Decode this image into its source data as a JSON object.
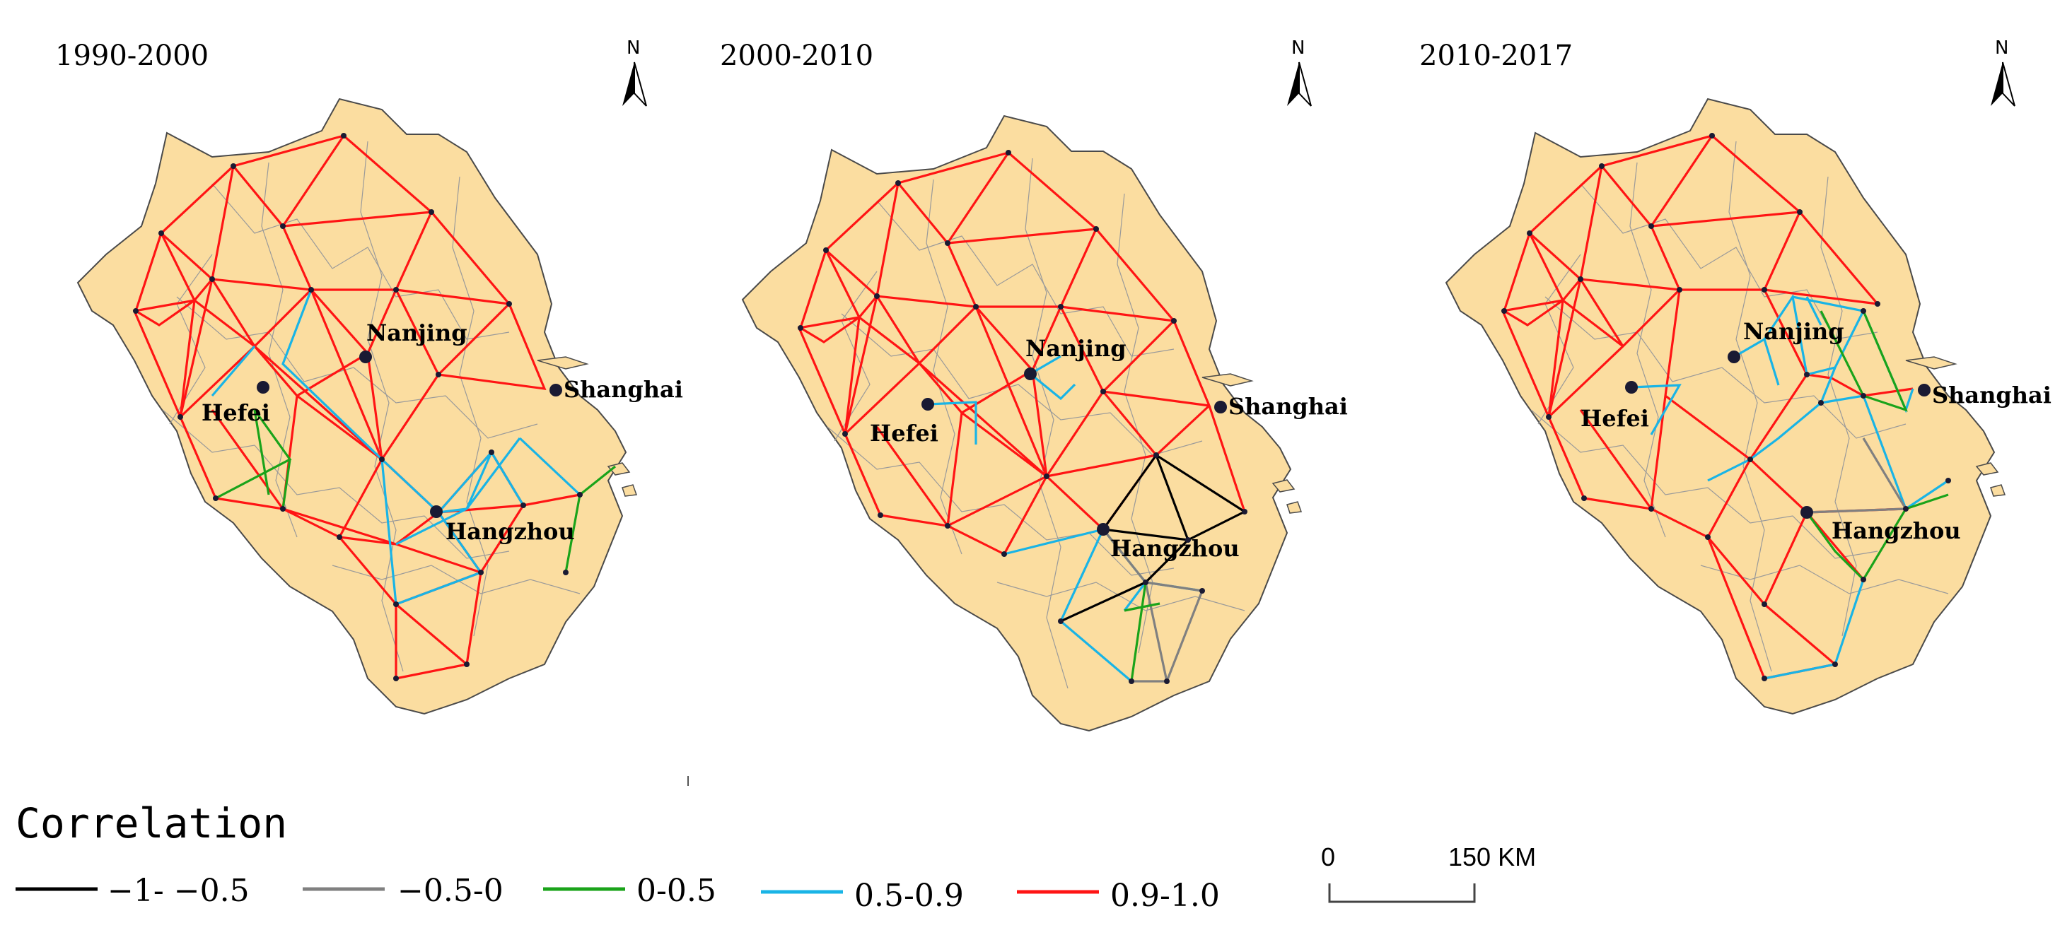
{
  "panels": [
    {
      "title": "1990-2000"
    },
    {
      "title": "2000-2010"
    },
    {
      "title": "2010-2017"
    }
  ],
  "cities": {
    "hefei": "Hefei",
    "nanjing": "Nanjing",
    "hangzhou": "Hangzhou",
    "shanghai": "Shanghai"
  },
  "north_label": "N",
  "legend": {
    "title": "Correlation",
    "items": [
      {
        "label": "−1‐ −0.5",
        "color": "#000000"
      },
      {
        "label": "−0.5‐0",
        "color": "#808080"
      },
      {
        "label": "0‐0.5",
        "color": "#1aa31a"
      },
      {
        "label": "0.5‐0.9",
        "color": "#19b4e6"
      },
      {
        "label": "0.9‐1.0",
        "color": "#ff1414"
      }
    ]
  },
  "scale_bar": {
    "start": "0",
    "end": "150 KM"
  },
  "colors": {
    "land": "#fbdda0",
    "outline": "#4a4a4a",
    "node": "#1a1a33"
  }
}
